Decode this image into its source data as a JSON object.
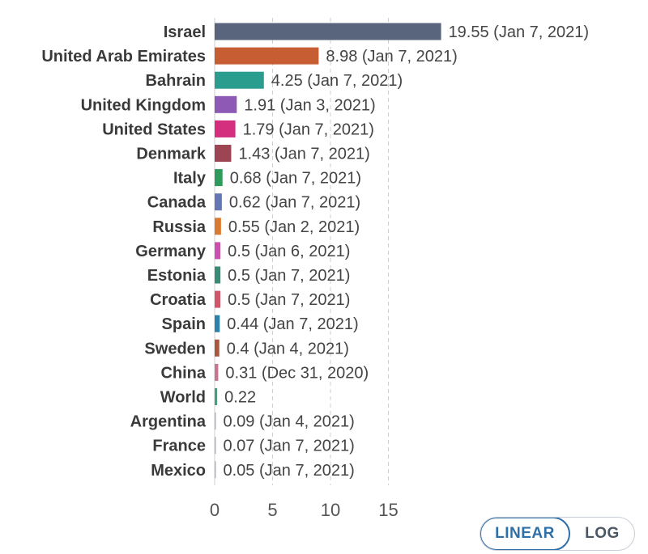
{
  "chart_data": {
    "type": "bar",
    "orientation": "horizontal",
    "categories": [
      "Israel",
      "United Arab Emirates",
      "Bahrain",
      "United Kingdom",
      "United States",
      "Denmark",
      "Italy",
      "Canada",
      "Russia",
      "Germany",
      "Estonia",
      "Croatia",
      "Spain",
      "Sweden",
      "China",
      "World",
      "Argentina",
      "France",
      "Mexico"
    ],
    "values": [
      19.55,
      8.98,
      4.25,
      1.91,
      1.79,
      1.43,
      0.68,
      0.62,
      0.55,
      0.5,
      0.5,
      0.5,
      0.44,
      0.4,
      0.31,
      0.22,
      0.09,
      0.07,
      0.05
    ],
    "value_labels": [
      "19.55 (Jan 7, 2021)",
      "8.98 (Jan 7, 2021)",
      "4.25 (Jan 7, 2021)",
      "1.91 (Jan 3, 2021)",
      "1.79 (Jan 7, 2021)",
      "1.43 (Jan 7, 2021)",
      "0.68 (Jan 7, 2021)",
      "0.62 (Jan 7, 2021)",
      "0.55 (Jan 2, 2021)",
      "0.5 (Jan 6, 2021)",
      "0.5 (Jan 7, 2021)",
      "0.5 (Jan 7, 2021)",
      "0.44 (Jan 7, 2021)",
      "0.4 (Jan 4, 2021)",
      "0.31 (Dec 31, 2020)",
      "0.22",
      "0.09 (Jan 4, 2021)",
      "0.07 (Jan 7, 2021)",
      "0.05 (Jan 7, 2021)"
    ],
    "colors": [
      "#58657d",
      "#c65d33",
      "#2a9d8f",
      "#8e59b5",
      "#d42e7e",
      "#9d4552",
      "#2e9a5b",
      "#6277b4",
      "#d97a30",
      "#cf4fb0",
      "#3a8a78",
      "#d6546a",
      "#2b81a8",
      "#a8573f",
      "#c47693",
      "#3ca37a",
      "#adb4c0",
      "#adb4c0",
      "#adb4c0"
    ],
    "x_ticks": [
      0,
      5,
      10,
      15
    ],
    "xlim": [
      0,
      20
    ],
    "grid": true,
    "title": "",
    "xlabel": "",
    "ylabel": ""
  },
  "controls": {
    "scale_options": [
      "LINEAR",
      "LOG"
    ],
    "selected": "LINEAR"
  }
}
